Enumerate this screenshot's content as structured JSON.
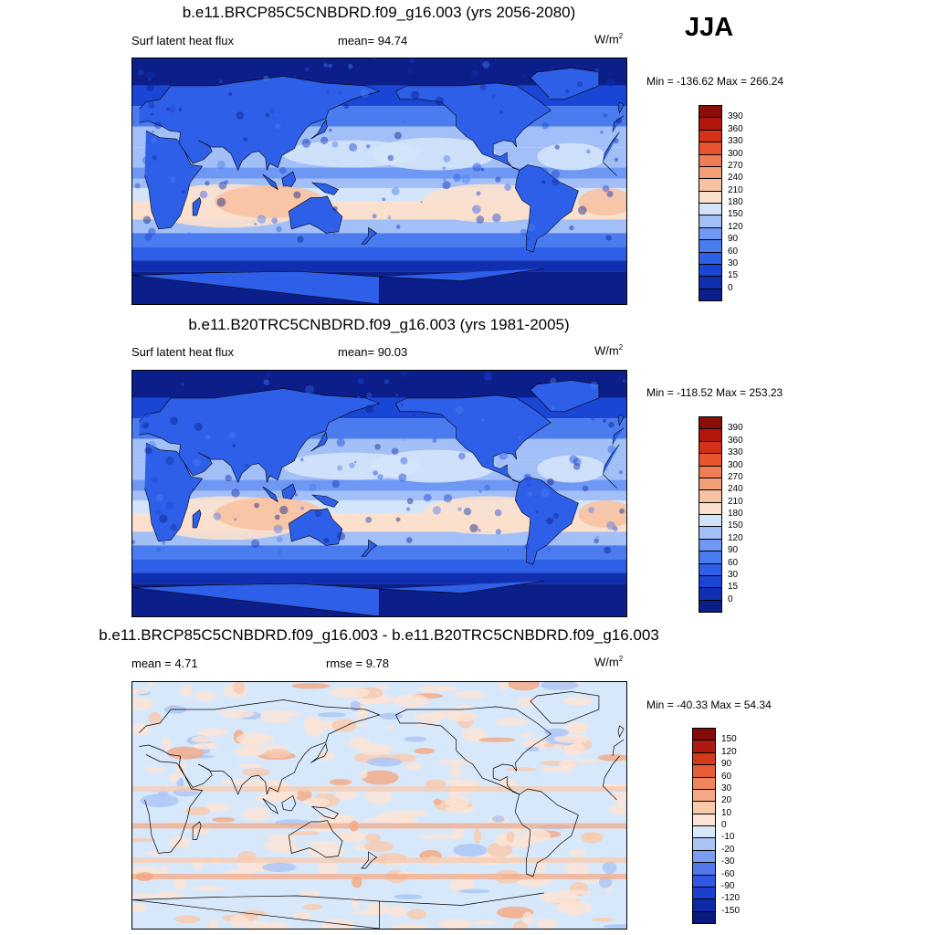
{
  "season": "JJA",
  "panels": [
    {
      "title": "b.e11.BRCP85C5CNBDRD.f09_g16.003 (yrs 2056-2080)",
      "left_label": "Surf latent heat flux",
      "center_label": "mean=  94.74",
      "units": "W/m",
      "units_sup": "2",
      "minmax": "Min = -136.62 Max = 266.24",
      "colorbar_labels": [
        "390",
        "360",
        "330",
        "300",
        "270",
        "240",
        "210",
        "180",
        "150",
        "120",
        "90",
        "60",
        "30",
        "15",
        "0"
      ]
    },
    {
      "title": "b.e11.B20TRC5CNBDRD.f09_g16.003 (yrs 1981-2005)",
      "left_label": "Surf latent heat flux",
      "center_label": "mean=  90.03",
      "units": "W/m",
      "units_sup": "2",
      "minmax": "Min = -118.52 Max = 253.23",
      "colorbar_labels": [
        "390",
        "360",
        "330",
        "300",
        "270",
        "240",
        "210",
        "180",
        "150",
        "120",
        "90",
        "60",
        "30",
        "15",
        "0"
      ]
    },
    {
      "title": "b.e11.BRCP85C5CNBDRD.f09_g16.003 - b.e11.B20TRC5CNBDRD.f09_g16.003",
      "left_label": "mean =   4.71",
      "center_label": "rmse =   9.78",
      "units": "W/m",
      "units_sup": "2",
      "minmax": "Min = -40.33 Max =  54.34",
      "colorbar_labels": [
        "150",
        "120",
        "90",
        "60",
        "30",
        "20",
        "10",
        "0",
        "-10",
        "-20",
        "-30",
        "-60",
        "-90",
        "-120",
        "-150"
      ]
    }
  ],
  "chart_data": [
    {
      "type": "heatmap",
      "title": "b.e11.BRCP85C5CNBDRD.f09_g16.003 (yrs 2056-2080)",
      "variable": "Surf latent heat flux",
      "units": "W/m2",
      "mean": 94.74,
      "min": -136.62,
      "max": 266.24,
      "levels": [
        0,
        15,
        30,
        60,
        90,
        120,
        150,
        180,
        210,
        240,
        270,
        300,
        330,
        360,
        390
      ],
      "colors": [
        "#0c1e8a",
        "#0f2fb0",
        "#1a46d6",
        "#2e5fe8",
        "#4a7cf0",
        "#6f98f4",
        "#a2bff7",
        "#d4e4fa",
        "#fbe0cd",
        "#f7c2a2",
        "#f3a07a",
        "#ef7d55",
        "#e9552f",
        "#d53018",
        "#b3160c",
        "#8a0d06"
      ]
    },
    {
      "type": "heatmap",
      "title": "b.e11.B20TRC5CNBDRD.f09_g16.003 (yrs 1981-2005)",
      "variable": "Surf latent heat flux",
      "units": "W/m2",
      "mean": 90.03,
      "min": -118.52,
      "max": 253.23,
      "levels": [
        0,
        15,
        30,
        60,
        90,
        120,
        150,
        180,
        210,
        240,
        270,
        300,
        330,
        360,
        390
      ],
      "colors": [
        "#0c1e8a",
        "#0f2fb0",
        "#1a46d6",
        "#2e5fe8",
        "#4a7cf0",
        "#6f98f4",
        "#a2bff7",
        "#d4e4fa",
        "#fbe0cd",
        "#f7c2a2",
        "#f3a07a",
        "#ef7d55",
        "#e9552f",
        "#d53018",
        "#b3160c",
        "#8a0d06"
      ]
    },
    {
      "type": "heatmap",
      "title": "b.e11.BRCP85C5CNBDRD.f09_g16.003 - b.e11.B20TRC5CNBDRD.f09_g16.003",
      "units": "W/m2",
      "mean": 4.71,
      "rmse": 9.78,
      "min": -40.33,
      "max": 54.34,
      "levels": [
        -150,
        -120,
        -90,
        -60,
        -30,
        -20,
        -10,
        0,
        10,
        20,
        30,
        60,
        90,
        120,
        150
      ],
      "colors": [
        "#0a1a80",
        "#0f2aa8",
        "#1a40d0",
        "#3058e4",
        "#5278ec",
        "#7c9cf2",
        "#aac4f6",
        "#d8e8fb",
        "#fde4d4",
        "#f9c9ac",
        "#f4a883",
        "#ee845c",
        "#e65c34",
        "#d23a1c",
        "#b01a0e",
        "#850c06"
      ]
    }
  ]
}
